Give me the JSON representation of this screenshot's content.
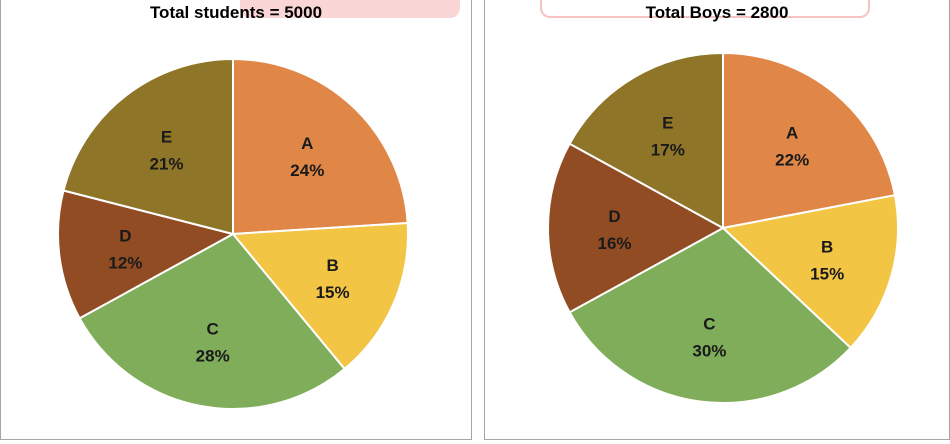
{
  "colors": {
    "A": "#e08647",
    "B": "#f3c544",
    "C": "#7fad5a",
    "D": "#924c24",
    "E": "#8f7527",
    "slice_border": "#ffffff",
    "frame": "#a6a6a6"
  },
  "chart_data": [
    {
      "type": "pie",
      "title": "Total students = 5000",
      "slices": [
        {
          "label": "A",
          "value": 24,
          "value_label": "24%"
        },
        {
          "label": "B",
          "value": 15,
          "value_label": "15%"
        },
        {
          "label": "C",
          "value": 28,
          "value_label": "28%"
        },
        {
          "label": "D",
          "value": 12,
          "value_label": "12%"
        },
        {
          "label": "E",
          "value": 21,
          "value_label": "21%"
        }
      ]
    },
    {
      "type": "pie",
      "title": "Total Boys = 2800",
      "slices": [
        {
          "label": "A",
          "value": 22,
          "value_label": "22%"
        },
        {
          "label": "B",
          "value": 15,
          "value_label": "15%"
        },
        {
          "label": "C",
          "value": 30,
          "value_label": "30%"
        },
        {
          "label": "D",
          "value": 16,
          "value_label": "16%"
        },
        {
          "label": "E",
          "value": 17,
          "value_label": "17%"
        }
      ]
    }
  ]
}
